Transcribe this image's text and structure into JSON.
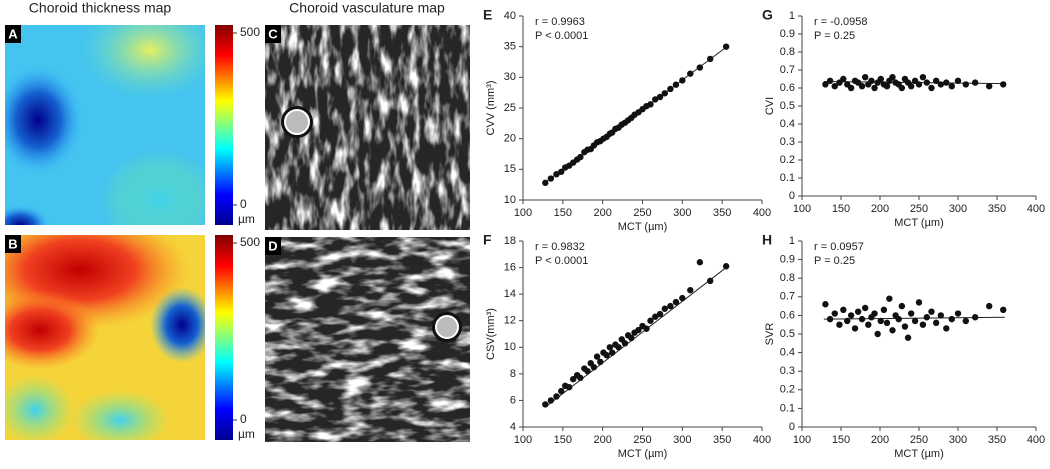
{
  "maps": {
    "thickness_title": "Choroid thickness map",
    "vasculature_title": "Choroid vasculature map",
    "labels": [
      "A",
      "B",
      "C",
      "D"
    ],
    "colorbar_ticks": [
      0,
      500
    ],
    "colorbar_unit": "µm"
  },
  "chart_data": [
    {
      "type": "scatter",
      "label": "E",
      "xlabel": "MCT (µm)",
      "ylabel": "CVV (mm³)",
      "annotations": [
        "r = 0.9963",
        "P < 0.0001"
      ],
      "color": "#111111",
      "xlim": [
        100,
        400
      ],
      "xticks": [
        100,
        150,
        200,
        250,
        300,
        350,
        400
      ],
      "ylim": [
        10,
        40
      ],
      "yticks": [
        10,
        15,
        20,
        25,
        30,
        35,
        40
      ],
      "x": [
        128,
        135,
        142,
        148,
        153,
        158,
        163,
        168,
        172,
        177,
        181,
        185,
        189,
        193,
        197,
        201,
        205,
        209,
        212,
        216,
        220,
        224,
        228,
        232,
        236,
        240,
        245,
        250,
        255,
        260,
        266,
        272,
        278,
        285,
        292,
        300,
        310,
        322,
        335,
        355
      ],
      "y": [
        12.8,
        13.5,
        14.2,
        14.6,
        15.3,
        15.6,
        16.1,
        16.6,
        17.0,
        17.8,
        18.2,
        18.3,
        18.9,
        19.4,
        19.6,
        20.0,
        20.3,
        20.8,
        21.0,
        21.6,
        21.8,
        22.3,
        22.6,
        23.0,
        23.4,
        23.9,
        24.3,
        24.8,
        25.3,
        25.6,
        26.4,
        26.8,
        27.4,
        28.1,
        28.8,
        29.5,
        30.6,
        31.6,
        33.0,
        35.0
      ],
      "fit": {
        "x": [
          128,
          355
        ],
        "y": [
          12.9,
          34.9
        ]
      }
    },
    {
      "type": "scatter",
      "label": "F",
      "xlabel": "MCT (µm)",
      "ylabel": "CSV(mm³)",
      "annotations": [
        "r = 0.9832",
        "P < 0.0001"
      ],
      "color": "#111111",
      "xlim": [
        100,
        400
      ],
      "xticks": [
        100,
        150,
        200,
        250,
        300,
        350,
        400
      ],
      "ylim": [
        4,
        18
      ],
      "yticks": [
        4,
        6,
        8,
        10,
        12,
        14,
        16,
        18
      ],
      "x": [
        128,
        135,
        142,
        148,
        153,
        158,
        163,
        168,
        172,
        177,
        181,
        185,
        189,
        193,
        197,
        201,
        205,
        209,
        212,
        216,
        220,
        224,
        228,
        232,
        236,
        240,
        245,
        250,
        255,
        260,
        266,
        272,
        278,
        285,
        292,
        300,
        310,
        322,
        335,
        355
      ],
      "y": [
        5.7,
        6.0,
        6.3,
        6.7,
        7.1,
        7.0,
        7.6,
        7.9,
        7.7,
        8.4,
        8.2,
        8.8,
        8.5,
        9.3,
        8.9,
        9.6,
        9.4,
        10.0,
        9.6,
        10.2,
        10.0,
        10.6,
        10.3,
        10.9,
        10.7,
        11.1,
        11.3,
        11.6,
        11.4,
        12.0,
        12.3,
        12.5,
        12.9,
        13.1,
        13.4,
        13.7,
        14.3,
        16.4,
        15.0,
        16.1
      ],
      "fit": {
        "x": [
          128,
          355
        ],
        "y": [
          5.5,
          16.0
        ]
      }
    },
    {
      "type": "scatter",
      "label": "G",
      "xlabel": "MCT (µm)",
      "ylabel": "CVI",
      "annotations": [
        "r = -0.0958",
        "P = 0.25"
      ],
      "color": "#111111",
      "xlim": [
        100,
        400
      ],
      "xticks": [
        100,
        150,
        200,
        250,
        300,
        350,
        400
      ],
      "ylim": [
        0,
        1
      ],
      "yticks": [
        0,
        0.1,
        0.2,
        0.3,
        0.4,
        0.5,
        0.6,
        0.7,
        0.8,
        0.9,
        1
      ],
      "x": [
        130,
        136,
        142,
        148,
        153,
        158,
        163,
        168,
        172,
        177,
        181,
        185,
        189,
        193,
        197,
        201,
        205,
        209,
        212,
        216,
        220,
        224,
        228,
        232,
        236,
        240,
        245,
        250,
        255,
        260,
        266,
        272,
        278,
        285,
        292,
        300,
        310,
        322,
        340,
        358
      ],
      "y": [
        0.62,
        0.64,
        0.61,
        0.63,
        0.65,
        0.62,
        0.6,
        0.64,
        0.63,
        0.61,
        0.66,
        0.62,
        0.64,
        0.6,
        0.63,
        0.65,
        0.62,
        0.61,
        0.64,
        0.66,
        0.63,
        0.62,
        0.6,
        0.65,
        0.63,
        0.61,
        0.64,
        0.62,
        0.66,
        0.63,
        0.6,
        0.64,
        0.62,
        0.63,
        0.61,
        0.64,
        0.62,
        0.63,
        0.61,
        0.62
      ],
      "fit": {
        "x": [
          128,
          360
        ],
        "y": [
          0.636,
          0.624
        ]
      }
    },
    {
      "type": "scatter",
      "label": "H",
      "xlabel": "MCT (µm)",
      "ylabel": "SVR",
      "annotations": [
        "r = 0.0957",
        "P = 0.25"
      ],
      "color": "#111111",
      "xlim": [
        100,
        400
      ],
      "xticks": [
        100,
        150,
        200,
        250,
        300,
        350,
        400
      ],
      "ylim": [
        0,
        1
      ],
      "yticks": [
        0,
        0.1,
        0.2,
        0.3,
        0.4,
        0.5,
        0.6,
        0.7,
        0.8,
        0.9,
        1
      ],
      "x": [
        130,
        136,
        142,
        148,
        153,
        158,
        163,
        168,
        172,
        177,
        181,
        185,
        189,
        193,
        197,
        201,
        205,
        209,
        212,
        216,
        220,
        224,
        228,
        232,
        236,
        240,
        245,
        250,
        255,
        260,
        266,
        272,
        278,
        285,
        292,
        300,
        310,
        322,
        340,
        358
      ],
      "y": [
        0.66,
        0.58,
        0.61,
        0.55,
        0.63,
        0.57,
        0.6,
        0.53,
        0.62,
        0.58,
        0.64,
        0.55,
        0.59,
        0.61,
        0.5,
        0.57,
        0.63,
        0.56,
        0.69,
        0.52,
        0.6,
        0.58,
        0.65,
        0.54,
        0.48,
        0.61,
        0.57,
        0.67,
        0.55,
        0.59,
        0.62,
        0.56,
        0.6,
        0.53,
        0.58,
        0.61,
        0.57,
        0.59,
        0.65,
        0.63
      ],
      "fit": {
        "x": [
          128,
          360
        ],
        "y": [
          0.58,
          0.59
        ]
      }
    }
  ]
}
